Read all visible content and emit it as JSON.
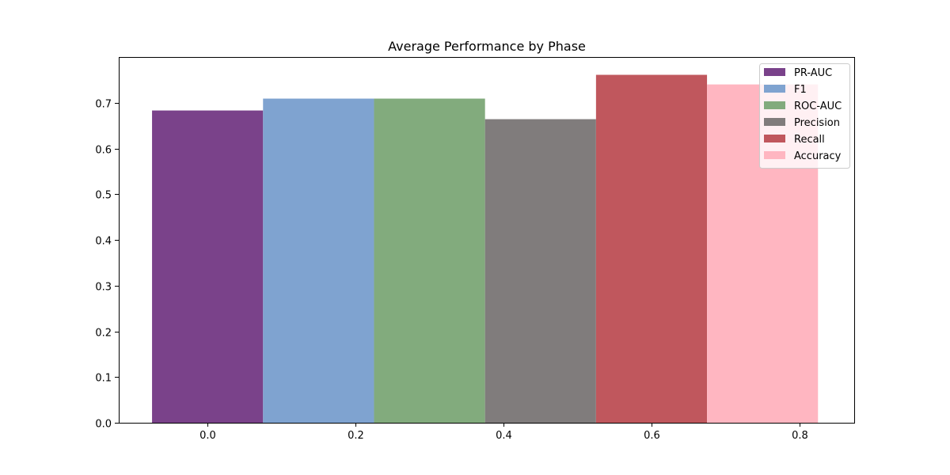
{
  "chart_data": {
    "type": "bar",
    "title": "Average Performance by Phase",
    "xlabel": "",
    "ylabel": "",
    "xlim": [
      -0.12,
      0.875
    ],
    "ylim": [
      0,
      0.8
    ],
    "xticks": [
      0.0,
      0.2,
      0.4,
      0.6,
      0.8
    ],
    "xtick_labels": [
      "0.0",
      "0.2",
      "0.4",
      "0.6",
      "0.8"
    ],
    "yticks": [
      0.0,
      0.1,
      0.2,
      0.3,
      0.4,
      0.5,
      0.6,
      0.7
    ],
    "ytick_labels": [
      "0.0",
      "0.1",
      "0.2",
      "0.3",
      "0.4",
      "0.5",
      "0.6",
      "0.7"
    ],
    "grid": false,
    "legend_position": "top-right",
    "bar_width": 0.15,
    "series": [
      {
        "name": "PR-AUC",
        "x": 0.0,
        "value": 0.683,
        "color": "#7a428a"
      },
      {
        "name": "F1",
        "x": 0.15,
        "value": 0.709,
        "color": "#7fa3d0"
      },
      {
        "name": "ROC-AUC",
        "x": 0.3,
        "value": 0.709,
        "color": "#82ab7d"
      },
      {
        "name": "Precision",
        "x": 0.45,
        "value": 0.664,
        "color": "#807c7c"
      },
      {
        "name": "Recall",
        "x": 0.6,
        "value": 0.761,
        "color": "#c0575d"
      },
      {
        "name": "Accuracy",
        "x": 0.75,
        "value": 0.74,
        "color": "#ffb6c1"
      }
    ]
  }
}
